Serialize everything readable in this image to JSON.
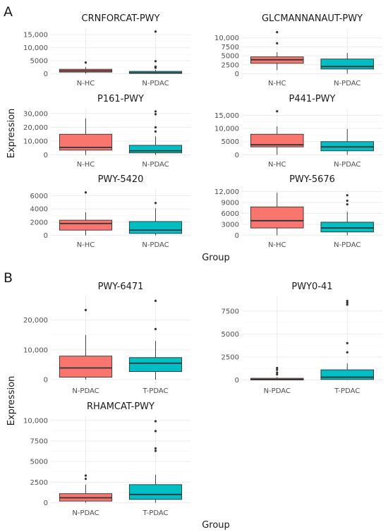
{
  "panels": [
    {
      "letter": "A",
      "xlabel": "Group",
      "ylabel": "Expression"
    },
    {
      "letter": "B",
      "xlabel": "Group",
      "ylabel": "Expression"
    }
  ],
  "colors": {
    "group1": "#f8766d",
    "group2": "#00bfc4",
    "dark": "#333333"
  },
  "chart_data": [
    {
      "type": "box",
      "panel": "A",
      "title": "CRNFORCAT-PWY",
      "categories": [
        "N-HC",
        "N-PDAC"
      ],
      "yticks": [
        0,
        5000,
        10000,
        15000
      ],
      "ytick_labels": [
        "0",
        "5000",
        "10,000",
        "15,000"
      ],
      "ylim": [
        -700,
        17500
      ],
      "boxes": [
        {
          "q1": 600,
          "median": 1100,
          "q3": 1700,
          "whisker_low": 0,
          "whisker_high": 2500,
          "outliers": [
            4300
          ]
        },
        {
          "q1": 100,
          "median": 300,
          "q3": 900,
          "whisker_low": 0,
          "whisker_high": 1500,
          "outliers": [
            2300,
            2700,
            4800,
            16200
          ]
        }
      ]
    },
    {
      "type": "box",
      "panel": "A",
      "title": "GLCMANNANAUT-PWY",
      "categories": [
        "N-HC",
        "N-PDAC"
      ],
      "yticks": [
        0,
        2500,
        5000,
        7500,
        10000
      ],
      "ytick_labels": [
        "0",
        "2500",
        "5000",
        "7500",
        "10,000"
      ],
      "ylim": [
        -500,
        12700
      ],
      "boxes": [
        {
          "q1": 2900,
          "median": 3900,
          "q3": 4700,
          "whisker_low": 1000,
          "whisker_high": 6000,
          "outliers": [
            8500,
            11600
          ]
        },
        {
          "q1": 1300,
          "median": 2000,
          "q3": 4100,
          "whisker_low": 0,
          "whisker_high": 5800,
          "outliers": []
        }
      ]
    },
    {
      "type": "box",
      "panel": "A",
      "title": "P161-PWY",
      "categories": [
        "N-HC",
        "N-PDAC"
      ],
      "yticks": [
        0,
        10000,
        20000,
        30000
      ],
      "ytick_labels": [
        "0",
        "10,000",
        "20,000",
        "30,000"
      ],
      "ylim": [
        -1200,
        33500
      ],
      "boxes": [
        {
          "q1": 3500,
          "median": 5500,
          "q3": 15000,
          "whisker_low": 0,
          "whisker_high": 26500,
          "outliers": []
        },
        {
          "q1": 1500,
          "median": 3000,
          "q3": 7000,
          "whisker_low": 0,
          "whisker_high": 13500,
          "outliers": [
            17000,
            20000,
            29500,
            31500
          ]
        }
      ]
    },
    {
      "type": "box",
      "panel": "A",
      "title": "P441-PWY",
      "categories": [
        "N-HC",
        "N-PDAC"
      ],
      "yticks": [
        0,
        5000,
        10000,
        15000
      ],
      "ytick_labels": [
        "0",
        "5000",
        "10,000",
        "15,000"
      ],
      "ylim": [
        -700,
        17500
      ],
      "boxes": [
        {
          "q1": 3000,
          "median": 3800,
          "q3": 7800,
          "whisker_low": 0,
          "whisker_high": 10800,
          "outliers": [
            16500
          ]
        },
        {
          "q1": 1500,
          "median": 3000,
          "q3": 5000,
          "whisker_low": 0,
          "whisker_high": 9800,
          "outliers": []
        }
      ]
    },
    {
      "type": "box",
      "panel": "A",
      "title": "PWY-5420",
      "categories": [
        "N-HC",
        "N-PDAC"
      ],
      "yticks": [
        0,
        2000,
        4000,
        6000
      ],
      "ytick_labels": [
        "0",
        "2000",
        "4000",
        "6000"
      ],
      "ylim": [
        -250,
        7000
      ],
      "boxes": [
        {
          "q1": 800,
          "median": 1800,
          "q3": 2300,
          "whisker_low": 0,
          "whisker_high": 3500,
          "outliers": [
            6500
          ]
        },
        {
          "q1": 300,
          "median": 800,
          "q3": 2100,
          "whisker_low": 0,
          "whisker_high": 4100,
          "outliers": [
            4900
          ]
        }
      ]
    },
    {
      "type": "box",
      "panel": "A",
      "title": "PWY-5676",
      "categories": [
        "N-HC",
        "N-PDAC"
      ],
      "yticks": [
        0,
        3000,
        6000,
        9000,
        12000
      ],
      "ytick_labels": [
        "0",
        "3000",
        "6000",
        "9000",
        "12,000"
      ],
      "ylim": [
        -500,
        12700
      ],
      "boxes": [
        {
          "q1": 2000,
          "median": 4000,
          "q3": 7800,
          "whisker_low": 0,
          "whisker_high": 11700,
          "outliers": []
        },
        {
          "q1": 900,
          "median": 2000,
          "q3": 3600,
          "whisker_low": 0,
          "whisker_high": 6500,
          "outliers": [
            8500,
            9500,
            11000
          ]
        }
      ]
    },
    {
      "type": "box",
      "panel": "B",
      "title": "PWY-6471",
      "categories": [
        "N-PDAC",
        "T-PDAC"
      ],
      "yticks": [
        0,
        10000,
        20000
      ],
      "ytick_labels": [
        "0",
        "10,000",
        "20,000"
      ],
      "ylim": [
        -1200,
        28000
      ],
      "boxes": [
        {
          "q1": 800,
          "median": 3900,
          "q3": 7900,
          "whisker_low": 0,
          "whisker_high": 15000,
          "outliers": [
            23400
          ]
        },
        {
          "q1": 2700,
          "median": 5500,
          "q3": 7400,
          "whisker_low": 0,
          "whisker_high": 13000,
          "outliers": [
            17000,
            26500
          ]
        }
      ]
    },
    {
      "type": "box",
      "panel": "B",
      "title": "PWY0-41",
      "categories": [
        "N-PDAC",
        "T-PDAC"
      ],
      "yticks": [
        0,
        2500,
        5000,
        7500
      ],
      "ytick_labels": [
        "0",
        "2500",
        "5000",
        "7500"
      ],
      "ylim": [
        -350,
        9100
      ],
      "boxes": [
        {
          "q1": 0,
          "median": 50,
          "q3": 180,
          "whisker_low": 0,
          "whisker_high": 300,
          "outliers": [
            600,
            800,
            1100,
            1300
          ]
        },
        {
          "q1": 50,
          "median": 300,
          "q3": 1100,
          "whisker_low": 0,
          "whisker_high": 1800,
          "outliers": [
            3000,
            4000,
            8200,
            8400,
            8600
          ]
        }
      ]
    },
    {
      "type": "box",
      "panel": "B",
      "title": "RHAMCAT-PWY",
      "categories": [
        "N-PDAC",
        "T-PDAC"
      ],
      "yticks": [
        0,
        2500,
        5000,
        7500,
        10000
      ],
      "ytick_labels": [
        "0",
        "2500",
        "5000",
        "7500",
        "10,000"
      ],
      "ylim": [
        -300,
        10500
      ],
      "boxes": [
        {
          "q1": 200,
          "median": 600,
          "q3": 1100,
          "whisker_low": 0,
          "whisker_high": 2200,
          "outliers": [
            2900,
            3300
          ]
        },
        {
          "q1": 400,
          "median": 1000,
          "q3": 2200,
          "whisker_low": 0,
          "whisker_high": 3400,
          "outliers": [
            6300,
            6600,
            8700,
            9900
          ]
        }
      ]
    }
  ]
}
